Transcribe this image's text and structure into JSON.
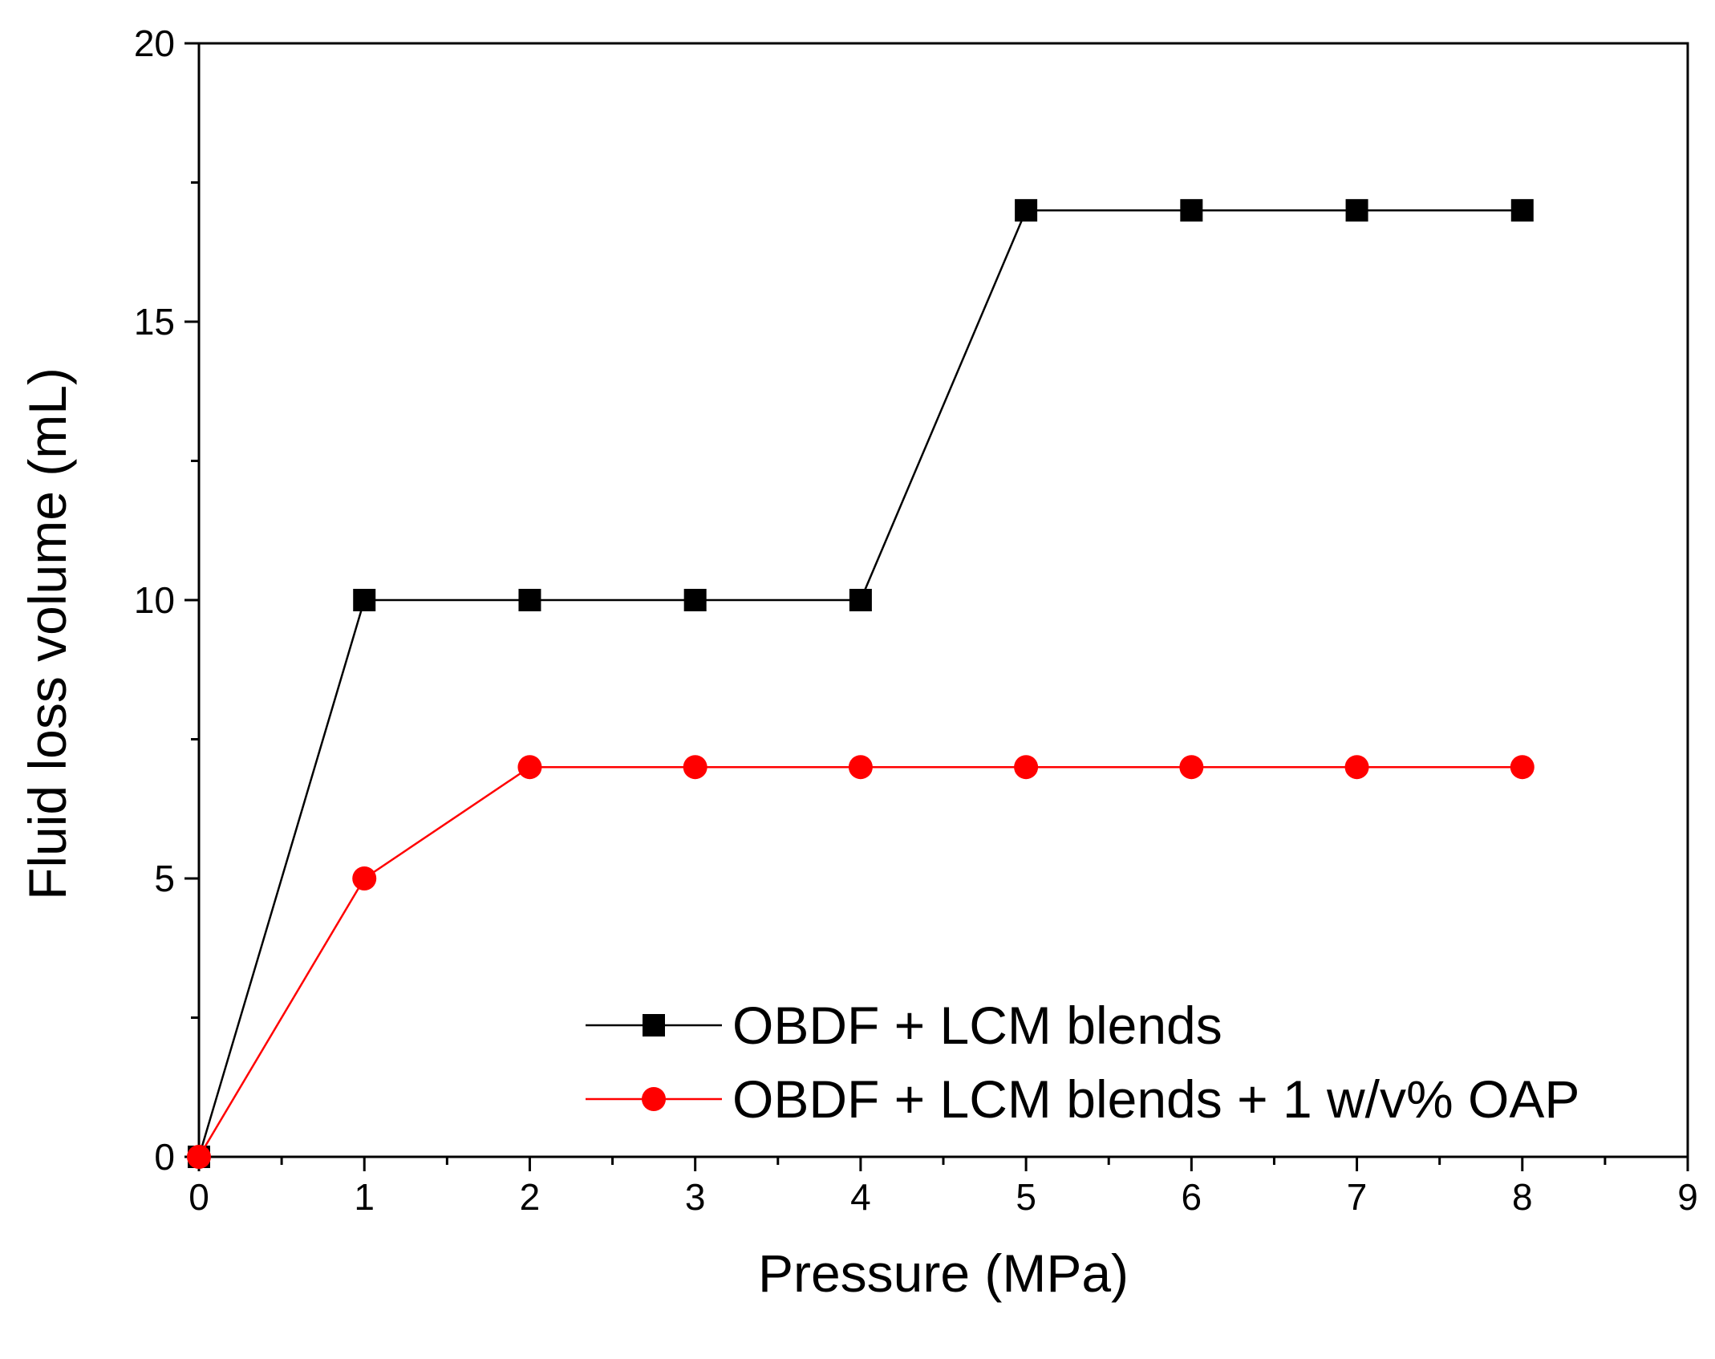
{
  "chart_data": {
    "type": "line",
    "title": "",
    "xlabel": "Pressure (MPa)",
    "ylabel": "Fluid loss volume (mL)",
    "xlim": [
      0,
      9
    ],
    "ylim": [
      0,
      20
    ],
    "x_ticks": [
      0,
      1,
      2,
      3,
      4,
      5,
      6,
      7,
      8,
      9
    ],
    "x_tick_labels": [
      "0",
      "1",
      "2",
      "3",
      "4",
      "5",
      "6",
      "7",
      "8",
      "9"
    ],
    "y_ticks": [
      0,
      5,
      10,
      15,
      20
    ],
    "y_tick_labels": [
      "0",
      "5",
      "10",
      "15",
      "20"
    ],
    "x_minor_step": 0.5,
    "y_minor_step": 2.5,
    "grid": false,
    "legend_position": "bottom-right",
    "x": [
      0,
      1,
      2,
      3,
      4,
      5,
      6,
      7,
      8
    ],
    "series": [
      {
        "name": "OBDF + LCM blends",
        "color": "#000000",
        "marker": "square",
        "values": [
          0,
          10,
          10,
          10,
          10,
          17,
          17,
          17,
          17
        ]
      },
      {
        "name": "OBDF + LCM blends + 1 w/v% OAP",
        "color": "#ff0000",
        "marker": "circle",
        "values": [
          0,
          5,
          7,
          7,
          7,
          7,
          7,
          7,
          7
        ]
      }
    ]
  }
}
